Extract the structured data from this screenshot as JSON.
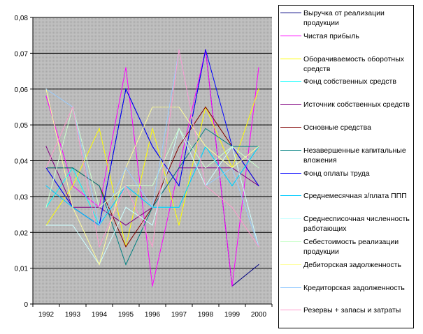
{
  "chart_data": {
    "type": "line",
    "title": "",
    "xlabel": "",
    "ylabel": "",
    "categories": [
      "1992",
      "1993",
      "1994",
      "1995",
      "1996",
      "1997",
      "1998",
      "1999",
      "2000"
    ],
    "ylim": [
      0,
      0.08
    ],
    "yticks": [
      0,
      0.01,
      0.02,
      0.03,
      0.04,
      0.05,
      0.06,
      0.07,
      0.08
    ],
    "ytick_labels": [
      "0",
      "0,01",
      "0,02",
      "0,03",
      "0,04",
      "0,05",
      "0,06",
      "0,07",
      "0,08"
    ],
    "grid": "horizontal",
    "plot_background": "#C0C0C0",
    "legend_position": "right",
    "series": [
      {
        "name": "Выручка от реализации продукции",
        "color": "#000080",
        "values": [
          0.038,
          0.027,
          0.022,
          0.06,
          0.044,
          0.033,
          0.071,
          0.005,
          0.011
        ]
      },
      {
        "name": "Чистая прибыль",
        "color": "#FF00FF",
        "values": [
          0.058,
          0.033,
          0.027,
          0.066,
          0.005,
          0.038,
          0.071,
          0.005,
          0.066
        ]
      },
      {
        "name": "Оборачиваемость оборотных средств",
        "color": "#FFFF00",
        "values": [
          0.022,
          0.033,
          0.049,
          0.016,
          0.049,
          0.022,
          0.055,
          0.038,
          0.06
        ]
      },
      {
        "name": "Фонд собственных средств",
        "color": "#00FFFF",
        "values": [
          0.027,
          0.038,
          0.022,
          0.033,
          0.027,
          0.027,
          0.044,
          0.033,
          0.044
        ]
      },
      {
        "name": "Источник собственных средств",
        "color": "#800080",
        "values": [
          0.044,
          0.027,
          0.027,
          0.022,
          0.027,
          0.038,
          0.038,
          0.038,
          0.033
        ]
      },
      {
        "name": "Основные средства",
        "color": "#800000",
        "values": [
          0.038,
          0.038,
          0.033,
          0.016,
          0.027,
          0.044,
          0.055,
          0.044,
          0.033
        ]
      },
      {
        "name": "Незавершенные капитальные вложения",
        "color": "#008080",
        "values": [
          0.038,
          0.038,
          0.033,
          0.011,
          0.027,
          0.038,
          0.049,
          0.044,
          0.044
        ]
      },
      {
        "name": "Фонд оплаты труда",
        "color": "#0000FF",
        "values": [
          0.038,
          0.027,
          0.022,
          0.06,
          0.044,
          0.033,
          0.071,
          0.044,
          0.033
        ]
      },
      {
        "name": "Среднемесячная з/плата ППП",
        "color": "#00CCFF",
        "values": [
          0.033,
          0.027,
          0.022,
          0.033,
          0.027,
          0.027,
          0.044,
          0.033,
          0.044
        ]
      },
      {
        "name": "Среднесписочная численность работающих",
        "color": "#CCFFFF",
        "values": [
          0.022,
          0.022,
          0.011,
          0.027,
          0.022,
          0.049,
          0.033,
          0.044,
          0.016
        ]
      },
      {
        "name": "Себестоимость реализации продукции",
        "color": "#CCFFCC",
        "values": [
          0.027,
          0.055,
          0.027,
          0.033,
          0.033,
          0.049,
          0.038,
          0.044,
          0.038
        ]
      },
      {
        "name": "Дебиторская задолженность",
        "color": "#FFFF99",
        "values": [
          0.06,
          0.027,
          0.011,
          0.038,
          0.055,
          0.055,
          0.044,
          0.038,
          0.044
        ]
      },
      {
        "name": "Кредиторская задолженность",
        "color": "#99CCFF",
        "values": [
          0.06,
          0.055,
          0.022,
          0.038,
          0.027,
          0.071,
          0.033,
          0.038,
          0.016
        ]
      },
      {
        "name": "Резервы + запасы и затраты",
        "color": "#FF99CC",
        "values": [
          0.038,
          0.055,
          0.016,
          0.033,
          0.016,
          0.071,
          0.033,
          0.027,
          0.016
        ]
      }
    ]
  }
}
